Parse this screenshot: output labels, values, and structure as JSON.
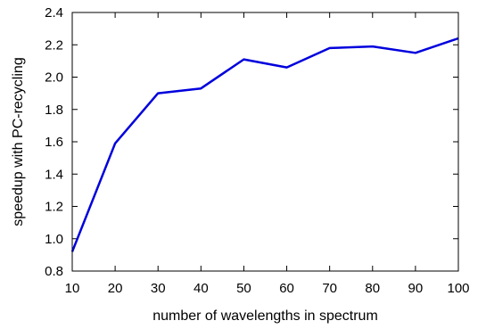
{
  "chart_data": {
    "type": "line",
    "title": "",
    "xlabel": "number of wavelengths in spectrum",
    "ylabel": "speedup with PC-recycling",
    "xlim": [
      10,
      100
    ],
    "ylim": [
      0.8,
      2.4
    ],
    "x_ticks": [
      10,
      20,
      30,
      40,
      50,
      60,
      70,
      80,
      90,
      100
    ],
    "y_ticks": [
      "0.8",
      "1.0",
      "1.2",
      "1.4",
      "1.6",
      "1.8",
      "2.0",
      "2.2",
      "2.4"
    ],
    "grid": false,
    "legend": "none",
    "series": [
      {
        "color": "#0000dd",
        "x": [
          10,
          20,
          30,
          40,
          50,
          60,
          70,
          80,
          90,
          100
        ],
        "y": [
          0.92,
          1.59,
          1.9,
          1.93,
          2.11,
          2.06,
          2.18,
          2.19,
          2.15,
          2.24
        ]
      }
    ]
  }
}
